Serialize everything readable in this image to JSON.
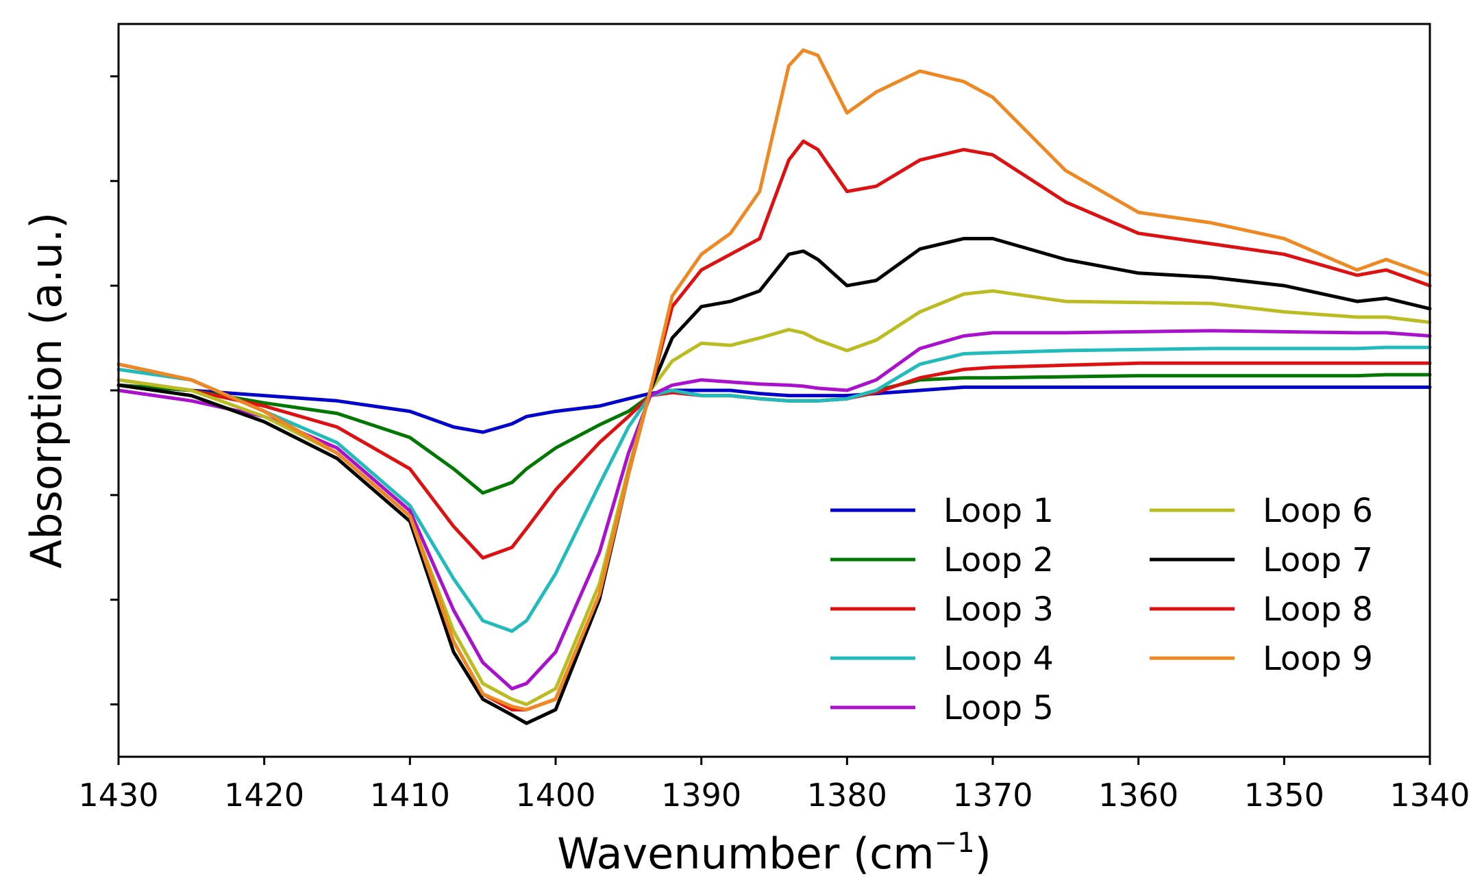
{
  "chart_data": {
    "type": "line",
    "title": "",
    "xlabel_main": "Wavenumber (cm",
    "xlabel_sup": "−1",
    "xlabel_close": ")",
    "ylabel": "Absorption (a.u.)",
    "xlim": [
      1430,
      1340
    ],
    "ylim": [
      -3.5,
      3.5
    ],
    "x_ticks": [
      1430,
      1420,
      1410,
      1400,
      1390,
      1380,
      1370,
      1360,
      1350,
      1340
    ],
    "x_tick_labels": [
      "1430",
      "1420",
      "1410",
      "1400",
      "1390",
      "1380",
      "1370",
      "1360",
      "1350",
      "1340"
    ],
    "y_ticks": [
      -3,
      -2,
      -1,
      0,
      1,
      2,
      3
    ],
    "y_tick_labels_shown": false,
    "grid": false,
    "legend_position": "lower-right",
    "legend_columns": 2,
    "x": [
      1430,
      1425,
      1420,
      1415,
      1410,
      1407,
      1405,
      1403,
      1402,
      1400,
      1397,
      1395,
      1393.5,
      1392,
      1390,
      1388,
      1386,
      1384,
      1383,
      1382,
      1380,
      1378,
      1375,
      1372,
      1370,
      1365,
      1360,
      1355,
      1350,
      1345,
      1343,
      1340
    ],
    "series": [
      {
        "name": "Loop 1",
        "color": "#0000cc",
        "values": [
          0.05,
          0.0,
          -0.05,
          -0.1,
          -0.2,
          -0.35,
          -0.4,
          -0.32,
          -0.25,
          -0.2,
          -0.15,
          -0.08,
          -0.03,
          0.0,
          0.0,
          0.0,
          -0.03,
          -0.05,
          -0.05,
          -0.05,
          -0.05,
          -0.03,
          0.0,
          0.03,
          0.03,
          0.03,
          0.03,
          0.03,
          0.03,
          0.03,
          0.03,
          0.03
        ]
      },
      {
        "name": "Loop 2",
        "color": "#007700",
        "values": [
          0.05,
          0.0,
          -0.12,
          -0.22,
          -0.45,
          -0.75,
          -0.98,
          -0.88,
          -0.75,
          -0.55,
          -0.33,
          -0.2,
          -0.05,
          0.0,
          -0.05,
          -0.05,
          -0.08,
          -0.1,
          -0.1,
          -0.1,
          -0.08,
          0.0,
          0.1,
          0.12,
          0.12,
          0.13,
          0.14,
          0.14,
          0.14,
          0.14,
          0.15,
          0.15
        ]
      },
      {
        "name": "Loop 3",
        "color": "#dd1111",
        "values": [
          0.1,
          0.0,
          -0.15,
          -0.35,
          -0.75,
          -1.3,
          -1.6,
          -1.5,
          -1.32,
          -0.95,
          -0.5,
          -0.25,
          -0.05,
          -0.02,
          -0.05,
          -0.05,
          -0.08,
          -0.1,
          -0.1,
          -0.1,
          -0.08,
          -0.02,
          0.12,
          0.2,
          0.22,
          0.24,
          0.26,
          0.26,
          0.26,
          0.26,
          0.26,
          0.26
        ]
      },
      {
        "name": "Loop 4",
        "color": "#22bbbb",
        "values": [
          0.2,
          0.1,
          -0.2,
          -0.5,
          -1.1,
          -1.8,
          -2.2,
          -2.3,
          -2.2,
          -1.75,
          -0.9,
          -0.35,
          -0.05,
          0.0,
          -0.05,
          -0.05,
          -0.08,
          -0.1,
          -0.1,
          -0.1,
          -0.08,
          0.0,
          0.25,
          0.35,
          0.36,
          0.38,
          0.39,
          0.4,
          0.4,
          0.4,
          0.41,
          0.41
        ]
      },
      {
        "name": "Loop 5",
        "color": "#aa11cc",
        "values": [
          0.0,
          -0.1,
          -0.25,
          -0.55,
          -1.15,
          -2.1,
          -2.6,
          -2.85,
          -2.8,
          -2.5,
          -1.55,
          -0.6,
          -0.05,
          0.05,
          0.1,
          0.08,
          0.06,
          0.05,
          0.04,
          0.02,
          0.0,
          0.1,
          0.4,
          0.52,
          0.55,
          0.55,
          0.56,
          0.57,
          0.56,
          0.55,
          0.55,
          0.52
        ]
      },
      {
        "name": "Loop 6",
        "color": "#bbbb22",
        "values": [
          0.1,
          0.0,
          -0.25,
          -0.6,
          -1.2,
          -2.3,
          -2.8,
          -2.95,
          -3.0,
          -2.85,
          -1.85,
          -0.75,
          0.0,
          0.28,
          0.45,
          0.43,
          0.5,
          0.58,
          0.55,
          0.48,
          0.38,
          0.48,
          0.75,
          0.92,
          0.95,
          0.85,
          0.84,
          0.83,
          0.75,
          0.7,
          0.7,
          0.65
        ]
      },
      {
        "name": "Loop 7",
        "color": "#000000",
        "values": [
          0.05,
          -0.05,
          -0.3,
          -0.65,
          -1.25,
          -2.5,
          -2.95,
          -3.1,
          -3.18,
          -3.05,
          -2.0,
          -0.8,
          0.0,
          0.5,
          0.8,
          0.85,
          0.95,
          1.3,
          1.33,
          1.25,
          1.0,
          1.05,
          1.35,
          1.45,
          1.45,
          1.25,
          1.12,
          1.08,
          1.0,
          0.85,
          0.88,
          0.78
        ]
      },
      {
        "name": "Loop 8",
        "color": "#dd1111",
        "values": [
          0.25,
          0.1,
          -0.2,
          -0.6,
          -1.2,
          -2.4,
          -2.9,
          -3.05,
          -3.05,
          -2.95,
          -1.95,
          -0.8,
          0.0,
          0.8,
          1.15,
          1.3,
          1.45,
          2.2,
          2.38,
          2.3,
          1.9,
          1.95,
          2.2,
          2.3,
          2.25,
          1.8,
          1.5,
          1.4,
          1.3,
          1.1,
          1.15,
          1.0
        ]
      },
      {
        "name": "Loop 9",
        "color": "#ee8822",
        "values": [
          0.25,
          0.1,
          -0.2,
          -0.6,
          -1.2,
          -2.4,
          -2.9,
          -3.02,
          -3.05,
          -2.95,
          -1.95,
          -0.8,
          0.0,
          0.9,
          1.3,
          1.5,
          1.9,
          3.1,
          3.25,
          3.2,
          2.65,
          2.85,
          3.05,
          2.95,
          2.8,
          2.1,
          1.7,
          1.6,
          1.45,
          1.15,
          1.25,
          1.1
        ]
      }
    ]
  }
}
